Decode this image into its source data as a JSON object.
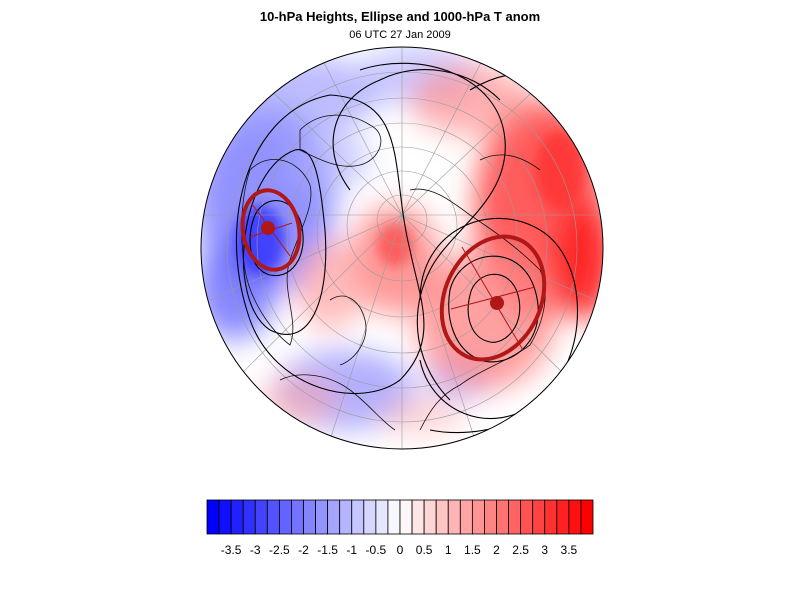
{
  "title": "10-hPa Heights, Ellipse and 1000-hPa T anom",
  "subtitle": "06 UTC 27 Jan 2009",
  "colorbar": {
    "labels": [
      "-3.5",
      "-3",
      "-2.5",
      "-2",
      "-1.5",
      "-1",
      "-0.5",
      "0",
      "0.5",
      "1",
      "1.5",
      "2",
      "2.5",
      "3",
      "3.5"
    ],
    "min": -4,
    "max": 4,
    "step": 0.25,
    "negative_color": "#0000ff",
    "positive_color": "#ff0000"
  },
  "map": {
    "projection": "orthographic (north polar)",
    "ellipse_color": "#b01818",
    "contour_color": "#000000"
  }
}
